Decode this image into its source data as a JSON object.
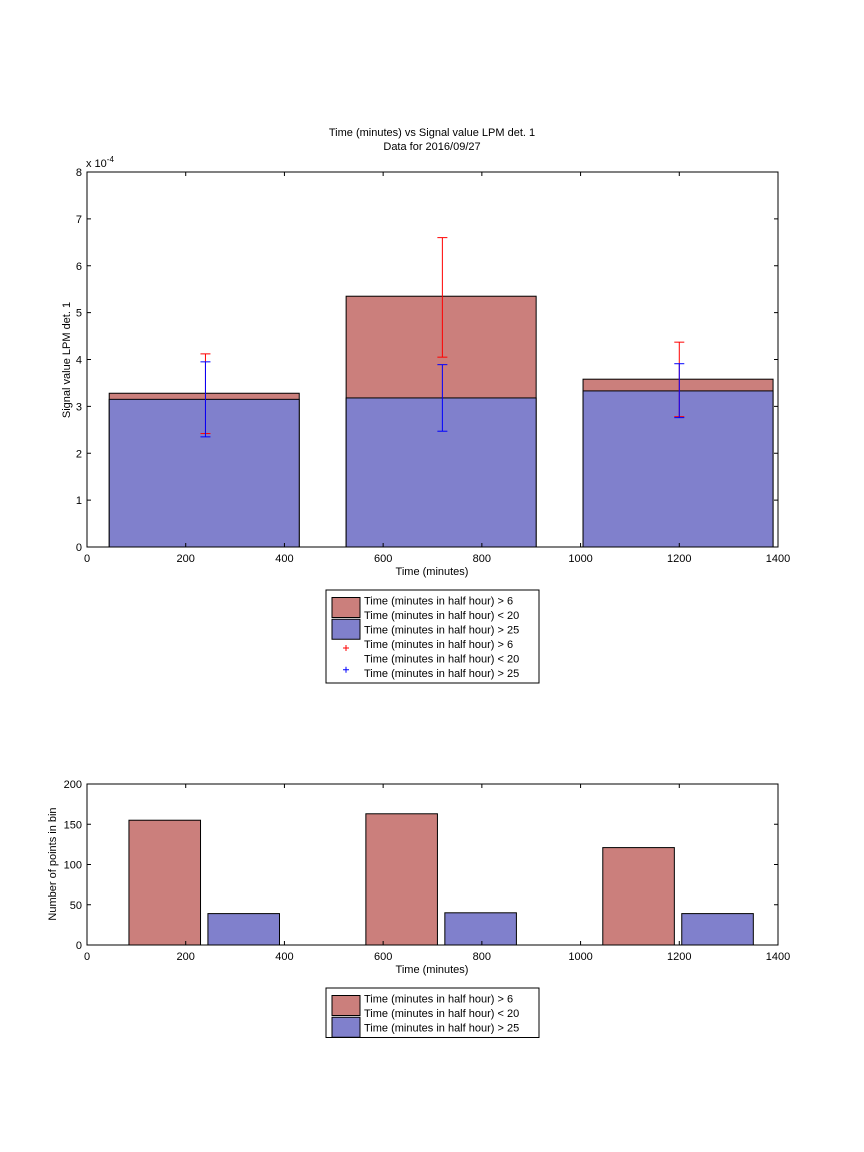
{
  "chart_data": [
    {
      "type": "bar",
      "title": "Time (minutes) vs Signal value LPM det. 1",
      "subtitle": "Data for 2016/09/27",
      "xlabel": "Time (minutes)",
      "ylabel": "Signal value LPM det. 1",
      "y_multiplier_label": "x 10",
      "y_multiplier_exponent": "-4",
      "xlim": [
        0,
        1400
      ],
      "ylim": [
        0,
        8
      ],
      "xticks": [
        "0",
        "200",
        "400",
        "600",
        "800",
        "1000",
        "1200",
        "1400"
      ],
      "yticks": [
        "0",
        "1",
        "2",
        "3",
        "4",
        "5",
        "6",
        "7",
        "8"
      ],
      "grid": false,
      "legend_placement": "below plot",
      "legend": {
        "entries": [
          {
            "marker": "patch",
            "color": "#cb7f7c",
            "lines": [
              "Time (minutes in half hour) > 6",
              "Time (minutes in half hour) < 20"
            ]
          },
          {
            "marker": "patch",
            "color": "#8080cc",
            "lines": [
              "Time (minutes in half hour) > 25"
            ]
          },
          {
            "marker": "+",
            "color": "#ff0000",
            "lines": [
              "Time (minutes in half hour) > 6",
              "Time (minutes in half hour) < 20"
            ]
          },
          {
            "marker": "+",
            "color": "#0000ff",
            "lines": [
              "Time (minutes in half hour) > 25"
            ]
          }
        ]
      },
      "bars": [
        {
          "x_start": 45,
          "x_end": 430,
          "center": 240
        },
        {
          "x_start": 525,
          "x_end": 910,
          "center": 720
        },
        {
          "x_start": 1005,
          "x_end": 1390,
          "center": 1200
        }
      ],
      "series": [
        {
          "color": "#cb7f7c",
          "values": [
            3.28,
            5.35,
            3.58
          ],
          "err_low": [
            2.42,
            4.05,
            2.78
          ],
          "err_high": [
            4.12,
            6.6,
            4.37
          ],
          "err_color": "#ff0000"
        },
        {
          "color": "#8080cc",
          "values": [
            3.15,
            3.18,
            3.33
          ],
          "err_low": [
            2.35,
            2.47,
            2.76
          ],
          "err_high": [
            3.95,
            3.89,
            3.91
          ],
          "err_color": "#0000ff"
        }
      ]
    },
    {
      "type": "bar",
      "xlabel": "Time (minutes)",
      "ylabel": "Number of points in bin",
      "xlim": [
        0,
        1400
      ],
      "ylim": [
        0,
        200
      ],
      "xticks": [
        "0",
        "200",
        "400",
        "600",
        "800",
        "1000",
        "1200",
        "1400"
      ],
      "yticks": [
        "0",
        "50",
        "100",
        "150",
        "200"
      ],
      "grid": false,
      "legend_placement": "below plot",
      "legend": {
        "entries": [
          {
            "marker": "patch",
            "color": "#cb7f7c",
            "lines": [
              "Time (minutes in half hour) > 6",
              "Time (minutes in half hour) < 20"
            ]
          },
          {
            "marker": "patch",
            "color": "#8080cc",
            "lines": [
              "Time (minutes in half hour) > 25"
            ]
          }
        ]
      },
      "bars": [
        {
          "x_start": 85,
          "x_end": 230,
          "value": 155,
          "color": "#cb7f7c"
        },
        {
          "x_start": 245,
          "x_end": 390,
          "value": 39,
          "color": "#8080cc"
        },
        {
          "x_start": 565,
          "x_end": 710,
          "value": 163,
          "color": "#cb7f7c"
        },
        {
          "x_start": 725,
          "x_end": 870,
          "value": 40,
          "color": "#8080cc"
        },
        {
          "x_start": 1045,
          "x_end": 1190,
          "value": 121,
          "color": "#cb7f7c"
        },
        {
          "x_start": 1205,
          "x_end": 1350,
          "value": 39,
          "color": "#8080cc"
        }
      ]
    }
  ]
}
